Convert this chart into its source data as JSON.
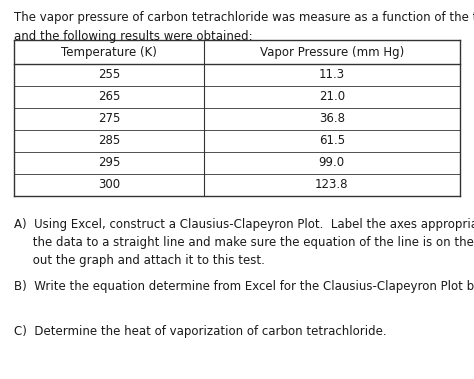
{
  "intro_line1": "The vapor pressure of carbon tetrachloride was measure as a function of the temperature",
  "intro_line2": "and the following results were obtained:",
  "table_headers": [
    "Temperature (K)",
    "Vapor Pressure (mm Hg)"
  ],
  "table_rows": [
    [
      "255",
      "11.3"
    ],
    [
      "265",
      "21.0"
    ],
    [
      "275",
      "36.8"
    ],
    [
      "285",
      "61.5"
    ],
    [
      "295",
      "99.0"
    ],
    [
      "300",
      "123.8"
    ]
  ],
  "question_A_line1": "A)  Using Excel, construct a Clausius-Clapeyron Plot.  Label the axes appropriately, fit",
  "question_A_line2": "     the data to a straight line and make sure the equation of the line is on the graph.  Print",
  "question_A_line3": "     out the graph and attach it to this test.",
  "question_B": "B)  Write the equation determine from Excel for the Clausius-Clapeyron Plot below.",
  "question_C": "C)  Determine the heat of vaporization of carbon tetrachloride.",
  "bg_color": "#ffffff",
  "text_color": "#1a1a1a",
  "font_size": 8.5,
  "table_font_size": 8.5,
  "fig_width": 4.74,
  "fig_height": 3.79,
  "dpi": 100
}
